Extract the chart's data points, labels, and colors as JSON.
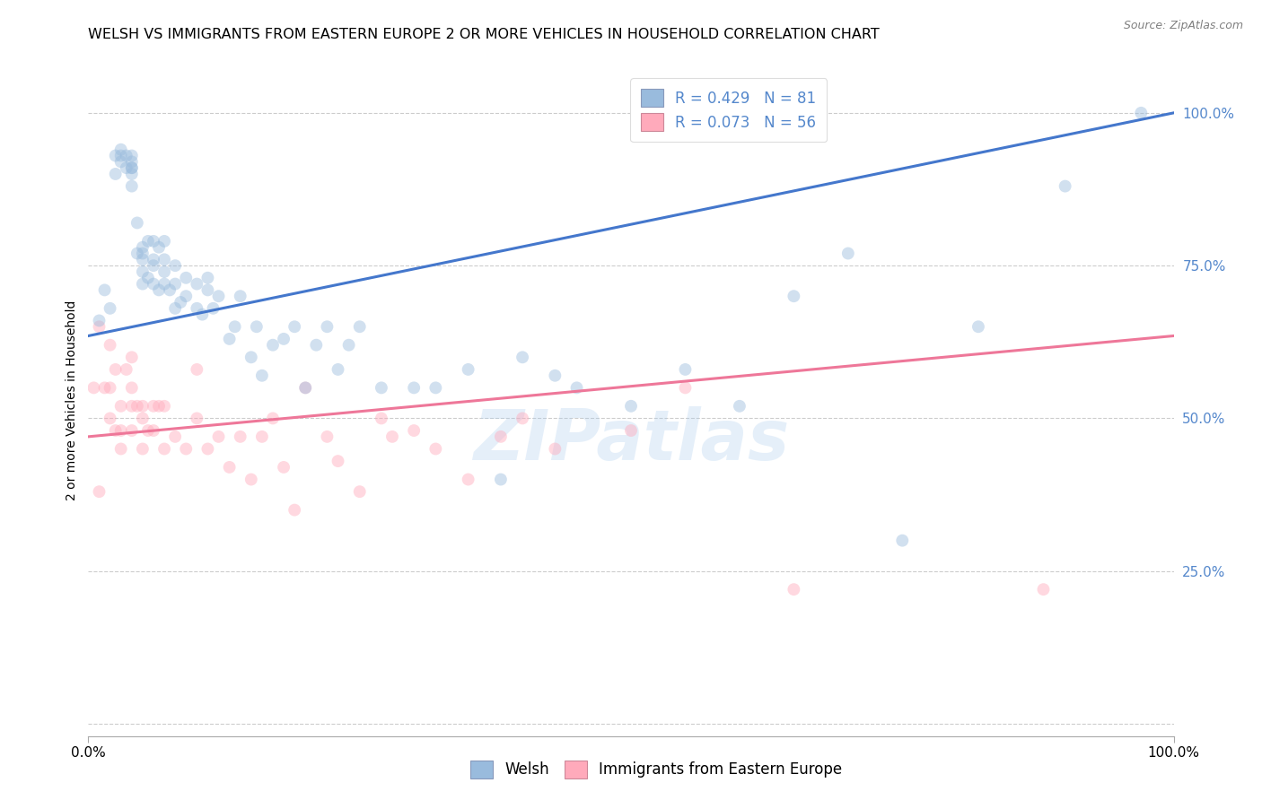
{
  "title": "WELSH VS IMMIGRANTS FROM EASTERN EUROPE 2 OR MORE VEHICLES IN HOUSEHOLD CORRELATION CHART",
  "source": "Source: ZipAtlas.com",
  "ylabel": "2 or more Vehicles in Household",
  "xlim": [
    0.0,
    1.0
  ],
  "ylim": [
    -0.02,
    1.08
  ],
  "yticks": [
    0.0,
    0.25,
    0.5,
    0.75,
    1.0
  ],
  "ytick_labels": [
    "",
    "25.0%",
    "50.0%",
    "75.0%",
    "100.0%"
  ],
  "watermark": "ZIPatlas",
  "welsh_color": "#99BBDD",
  "immigrant_color": "#FFAABB",
  "welsh_line_color": "#4477CC",
  "immigrant_line_color": "#EE7799",
  "tick_label_color": "#5588CC",
  "marker_size": 100,
  "marker_alpha": 0.45,
  "R_welsh": 0.429,
  "N_welsh": 81,
  "R_immigrant": 0.073,
  "N_immigrant": 56,
  "welsh_line_x0": 0.0,
  "welsh_line_y0": 0.635,
  "welsh_line_x1": 1.0,
  "welsh_line_y1": 1.0,
  "immigrant_line_x0": 0.0,
  "immigrant_line_y0": 0.47,
  "immigrant_line_x1": 1.0,
  "immigrant_line_y1": 0.635,
  "welsh_x": [
    0.01,
    0.015,
    0.02,
    0.025,
    0.025,
    0.03,
    0.03,
    0.03,
    0.035,
    0.035,
    0.04,
    0.04,
    0.04,
    0.04,
    0.04,
    0.04,
    0.045,
    0.045,
    0.05,
    0.05,
    0.05,
    0.05,
    0.05,
    0.055,
    0.055,
    0.06,
    0.06,
    0.06,
    0.06,
    0.065,
    0.065,
    0.07,
    0.07,
    0.07,
    0.07,
    0.075,
    0.08,
    0.08,
    0.08,
    0.085,
    0.09,
    0.09,
    0.1,
    0.1,
    0.105,
    0.11,
    0.11,
    0.115,
    0.12,
    0.13,
    0.135,
    0.14,
    0.15,
    0.155,
    0.16,
    0.17,
    0.18,
    0.19,
    0.2,
    0.21,
    0.22,
    0.23,
    0.24,
    0.25,
    0.27,
    0.3,
    0.32,
    0.35,
    0.38,
    0.4,
    0.43,
    0.45,
    0.5,
    0.55,
    0.6,
    0.65,
    0.7,
    0.75,
    0.82,
    0.9,
    0.97
  ],
  "welsh_y": [
    0.66,
    0.71,
    0.68,
    0.9,
    0.93,
    0.92,
    0.93,
    0.94,
    0.91,
    0.93,
    0.91,
    0.93,
    0.92,
    0.91,
    0.9,
    0.88,
    0.77,
    0.82,
    0.72,
    0.74,
    0.76,
    0.77,
    0.78,
    0.73,
    0.79,
    0.72,
    0.75,
    0.76,
    0.79,
    0.71,
    0.78,
    0.72,
    0.74,
    0.76,
    0.79,
    0.71,
    0.68,
    0.72,
    0.75,
    0.69,
    0.7,
    0.73,
    0.68,
    0.72,
    0.67,
    0.71,
    0.73,
    0.68,
    0.7,
    0.63,
    0.65,
    0.7,
    0.6,
    0.65,
    0.57,
    0.62,
    0.63,
    0.65,
    0.55,
    0.62,
    0.65,
    0.58,
    0.62,
    0.65,
    0.55,
    0.55,
    0.55,
    0.58,
    0.4,
    0.6,
    0.57,
    0.55,
    0.52,
    0.58,
    0.52,
    0.7,
    0.77,
    0.3,
    0.65,
    0.88,
    1.0
  ],
  "immigrant_x": [
    0.005,
    0.01,
    0.01,
    0.015,
    0.02,
    0.02,
    0.02,
    0.025,
    0.025,
    0.03,
    0.03,
    0.03,
    0.035,
    0.04,
    0.04,
    0.04,
    0.04,
    0.045,
    0.05,
    0.05,
    0.05,
    0.055,
    0.06,
    0.06,
    0.065,
    0.07,
    0.07,
    0.08,
    0.09,
    0.1,
    0.1,
    0.11,
    0.12,
    0.13,
    0.14,
    0.15,
    0.16,
    0.17,
    0.18,
    0.19,
    0.2,
    0.22,
    0.23,
    0.25,
    0.27,
    0.28,
    0.3,
    0.32,
    0.35,
    0.38,
    0.4,
    0.43,
    0.5,
    0.55,
    0.65,
    0.88
  ],
  "immigrant_y": [
    0.55,
    0.38,
    0.65,
    0.55,
    0.62,
    0.5,
    0.55,
    0.58,
    0.48,
    0.45,
    0.48,
    0.52,
    0.58,
    0.55,
    0.52,
    0.6,
    0.48,
    0.52,
    0.5,
    0.45,
    0.52,
    0.48,
    0.48,
    0.52,
    0.52,
    0.45,
    0.52,
    0.47,
    0.45,
    0.5,
    0.58,
    0.45,
    0.47,
    0.42,
    0.47,
    0.4,
    0.47,
    0.5,
    0.42,
    0.35,
    0.55,
    0.47,
    0.43,
    0.38,
    0.5,
    0.47,
    0.48,
    0.45,
    0.4,
    0.47,
    0.5,
    0.45,
    0.48,
    0.55,
    0.22,
    0.22
  ],
  "grid_color": "#CCCCCC",
  "background_color": "#FFFFFF",
  "title_fontsize": 11.5,
  "axis_label_fontsize": 10,
  "tick_fontsize": 11,
  "legend_fontsize": 12
}
